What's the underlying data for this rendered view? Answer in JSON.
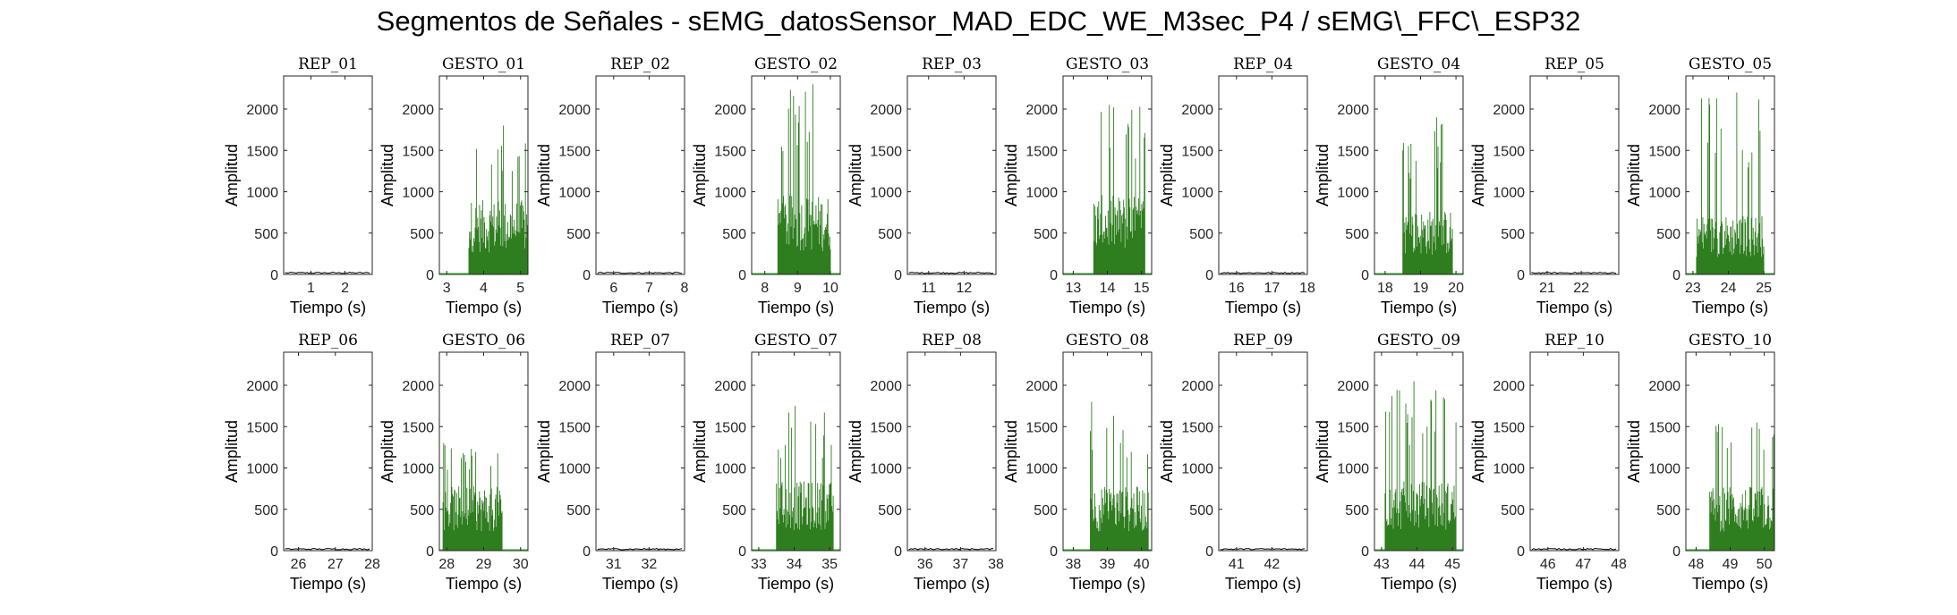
{
  "title": "Segmentos de Señales - sEMG_datosSensor_MAD_EDC_WE_M3sec_P4 / sEMG\\_FFC\\_ESP32",
  "colors": {
    "gesture": "#2e7d1e",
    "baseline": "#55cc55",
    "rest": "#000000",
    "axes": "#262626"
  },
  "chart_data": [
    {
      "type": "bar",
      "title": "REP_01",
      "xlabel": "Tiempo (s)",
      "ylabel": "Amplitud",
      "xlim": [
        0.2,
        2.8
      ],
      "ylim": [
        0,
        2400
      ],
      "xticks": [
        1,
        2
      ],
      "yticks": [
        0,
        500,
        1000,
        1500,
        2000
      ],
      "segment": "rest",
      "activity": null
    },
    {
      "type": "bar",
      "title": "GESTO_01",
      "xlabel": "Tiempo (s)",
      "ylabel": "Amplitud",
      "xlim": [
        2.8,
        5.2
      ],
      "ylim": [
        0,
        2400
      ],
      "xticks": [
        3,
        4,
        5
      ],
      "yticks": [
        0,
        500,
        1000,
        1500,
        2000
      ],
      "segment": "gesture",
      "activity": {
        "start": 3.6,
        "end": 5.2,
        "level": 750,
        "peak": 1800
      }
    },
    {
      "type": "bar",
      "title": "REP_02",
      "xlabel": "Tiempo (s)",
      "ylabel": "Amplitud",
      "xlim": [
        5.5,
        8.0
      ],
      "ylim": [
        0,
        2400
      ],
      "xticks": [
        6,
        7,
        8
      ],
      "yticks": [
        0,
        500,
        1000,
        1500,
        2000
      ],
      "segment": "rest",
      "activity": null
    },
    {
      "type": "bar",
      "title": "GESTO_02",
      "xlabel": "Tiempo (s)",
      "ylabel": "Amplitud",
      "xlim": [
        7.6,
        10.3
      ],
      "ylim": [
        0,
        2400
      ],
      "xticks": [
        8,
        9,
        10
      ],
      "yticks": [
        0,
        500,
        1000,
        1500,
        2000
      ],
      "segment": "gesture",
      "activity": {
        "start": 8.4,
        "end": 10.0,
        "level": 800,
        "peak": 2300
      }
    },
    {
      "type": "bar",
      "title": "REP_03",
      "xlabel": "Tiempo (s)",
      "ylabel": "Amplitud",
      "xlim": [
        10.4,
        12.9
      ],
      "ylim": [
        0,
        2400
      ],
      "xticks": [
        11,
        12
      ],
      "yticks": [
        0,
        500,
        1000,
        1500,
        2000
      ],
      "segment": "rest",
      "activity": null
    },
    {
      "type": "bar",
      "title": "GESTO_03",
      "xlabel": "Tiempo (s)",
      "ylabel": "Amplitud",
      "xlim": [
        12.7,
        15.3
      ],
      "ylim": [
        0,
        2400
      ],
      "xticks": [
        13,
        14,
        15
      ],
      "yticks": [
        0,
        500,
        1000,
        1500,
        2000
      ],
      "segment": "gesture",
      "activity": {
        "start": 13.6,
        "end": 15.1,
        "level": 800,
        "peak": 2050
      }
    },
    {
      "type": "bar",
      "title": "REP_04",
      "xlabel": "Tiempo (s)",
      "ylabel": "Amplitud",
      "xlim": [
        15.5,
        18.0
      ],
      "ylim": [
        0,
        2400
      ],
      "xticks": [
        16,
        17,
        18
      ],
      "yticks": [
        0,
        500,
        1000,
        1500,
        2000
      ],
      "segment": "rest",
      "activity": null
    },
    {
      "type": "bar",
      "title": "GESTO_04",
      "xlabel": "Tiempo (s)",
      "ylabel": "Amplitud",
      "xlim": [
        17.7,
        20.2
      ],
      "ylim": [
        0,
        2400
      ],
      "xticks": [
        18,
        19,
        20
      ],
      "yticks": [
        0,
        500,
        1000,
        1500,
        2000
      ],
      "segment": "gesture",
      "activity": {
        "start": 18.5,
        "end": 19.9,
        "level": 650,
        "peak": 1900
      }
    },
    {
      "type": "bar",
      "title": "REP_05",
      "xlabel": "Tiempo (s)",
      "ylabel": "Amplitud",
      "xlim": [
        20.5,
        23.1
      ],
      "ylim": [
        0,
        2400
      ],
      "xticks": [
        21,
        22
      ],
      "yticks": [
        0,
        500,
        1000,
        1500,
        2000
      ],
      "segment": "rest",
      "activity": null
    },
    {
      "type": "bar",
      "title": "GESTO_05",
      "xlabel": "Tiempo (s)",
      "ylabel": "Amplitud",
      "xlim": [
        22.8,
        25.3
      ],
      "ylim": [
        0,
        2400
      ],
      "xticks": [
        23,
        24,
        25
      ],
      "yticks": [
        0,
        500,
        1000,
        1500,
        2000
      ],
      "segment": "gesture",
      "activity": {
        "start": 23.1,
        "end": 25.0,
        "level": 600,
        "peak": 2200
      }
    },
    {
      "type": "bar",
      "title": "REP_06",
      "xlabel": "Tiempo (s)",
      "ylabel": "Amplitud",
      "xlim": [
        25.6,
        28.0
      ],
      "ylim": [
        0,
        2400
      ],
      "xticks": [
        26,
        27,
        28
      ],
      "yticks": [
        0,
        500,
        1000,
        1500,
        2000
      ],
      "segment": "rest",
      "activity": null
    },
    {
      "type": "bar",
      "title": "GESTO_06",
      "xlabel": "Tiempo (s)",
      "ylabel": "Amplitud",
      "xlim": [
        27.8,
        30.2
      ],
      "ylim": [
        0,
        2400
      ],
      "xticks": [
        28,
        29,
        30
      ],
      "yticks": [
        0,
        500,
        1000,
        1500,
        2000
      ],
      "segment": "gesture",
      "activity": {
        "start": 27.9,
        "end": 29.5,
        "level": 650,
        "peak": 1300
      }
    },
    {
      "type": "bar",
      "title": "REP_07",
      "xlabel": "Tiempo (s)",
      "ylabel": "Amplitud",
      "xlim": [
        30.5,
        33.0
      ],
      "ylim": [
        0,
        2400
      ],
      "xticks": [
        31,
        32
      ],
      "yticks": [
        0,
        500,
        1000,
        1500,
        2000
      ],
      "segment": "rest",
      "activity": null
    },
    {
      "type": "bar",
      "title": "GESTO_07",
      "xlabel": "Tiempo (s)",
      "ylabel": "Amplitud",
      "xlim": [
        32.8,
        35.3
      ],
      "ylim": [
        0,
        2400
      ],
      "xticks": [
        33,
        34,
        35
      ],
      "yticks": [
        0,
        500,
        1000,
        1500,
        2000
      ],
      "segment": "gesture",
      "activity": {
        "start": 33.5,
        "end": 35.1,
        "level": 700,
        "peak": 1750
      }
    },
    {
      "type": "bar",
      "title": "REP_08",
      "xlabel": "Tiempo (s)",
      "ylabel": "Amplitud",
      "xlim": [
        35.5,
        38.0
      ],
      "ylim": [
        0,
        2400
      ],
      "xticks": [
        36,
        37,
        38
      ],
      "yticks": [
        0,
        500,
        1000,
        1500,
        2000
      ],
      "segment": "rest",
      "activity": null
    },
    {
      "type": "bar",
      "title": "GESTO_08",
      "xlabel": "Tiempo (s)",
      "ylabel": "Amplitud",
      "xlim": [
        37.7,
        40.3
      ],
      "ylim": [
        0,
        2400
      ],
      "xticks": [
        38,
        39,
        40
      ],
      "yticks": [
        0,
        500,
        1000,
        1500,
        2000
      ],
      "segment": "gesture",
      "activity": {
        "start": 38.5,
        "end": 40.2,
        "level": 650,
        "peak": 1800
      }
    },
    {
      "type": "bar",
      "title": "REP_09",
      "xlabel": "Tiempo (s)",
      "ylabel": "Amplitud",
      "xlim": [
        40.5,
        43.0
      ],
      "ylim": [
        0,
        2400
      ],
      "xticks": [
        41,
        42
      ],
      "yticks": [
        0,
        500,
        1000,
        1500,
        2000
      ],
      "segment": "rest",
      "activity": null
    },
    {
      "type": "bar",
      "title": "GESTO_09",
      "xlabel": "Tiempo (s)",
      "ylabel": "Amplitud",
      "xlim": [
        42.8,
        45.3
      ],
      "ylim": [
        0,
        2400
      ],
      "xticks": [
        43,
        44,
        45
      ],
      "yticks": [
        0,
        500,
        1000,
        1500,
        2000
      ],
      "segment": "gesture",
      "activity": {
        "start": 43.1,
        "end": 45.1,
        "level": 700,
        "peak": 2050
      }
    },
    {
      "type": "bar",
      "title": "REP_10",
      "xlabel": "Tiempo (s)",
      "ylabel": "Amplitud",
      "xlim": [
        45.5,
        48.0
      ],
      "ylim": [
        0,
        2400
      ],
      "xticks": [
        46,
        47,
        48
      ],
      "yticks": [
        0,
        500,
        1000,
        1500,
        2000
      ],
      "segment": "rest",
      "activity": null
    },
    {
      "type": "bar",
      "title": "GESTO_10",
      "xlabel": "Tiempo (s)",
      "ylabel": "Amplitud",
      "xlim": [
        47.7,
        50.3
      ],
      "ylim": [
        0,
        2400
      ],
      "xticks": [
        48,
        49,
        50
      ],
      "yticks": [
        0,
        500,
        1000,
        1500,
        2000
      ],
      "segment": "gesture",
      "activity": {
        "start": 48.4,
        "end": 50.3,
        "level": 650,
        "peak": 1550
      }
    }
  ]
}
